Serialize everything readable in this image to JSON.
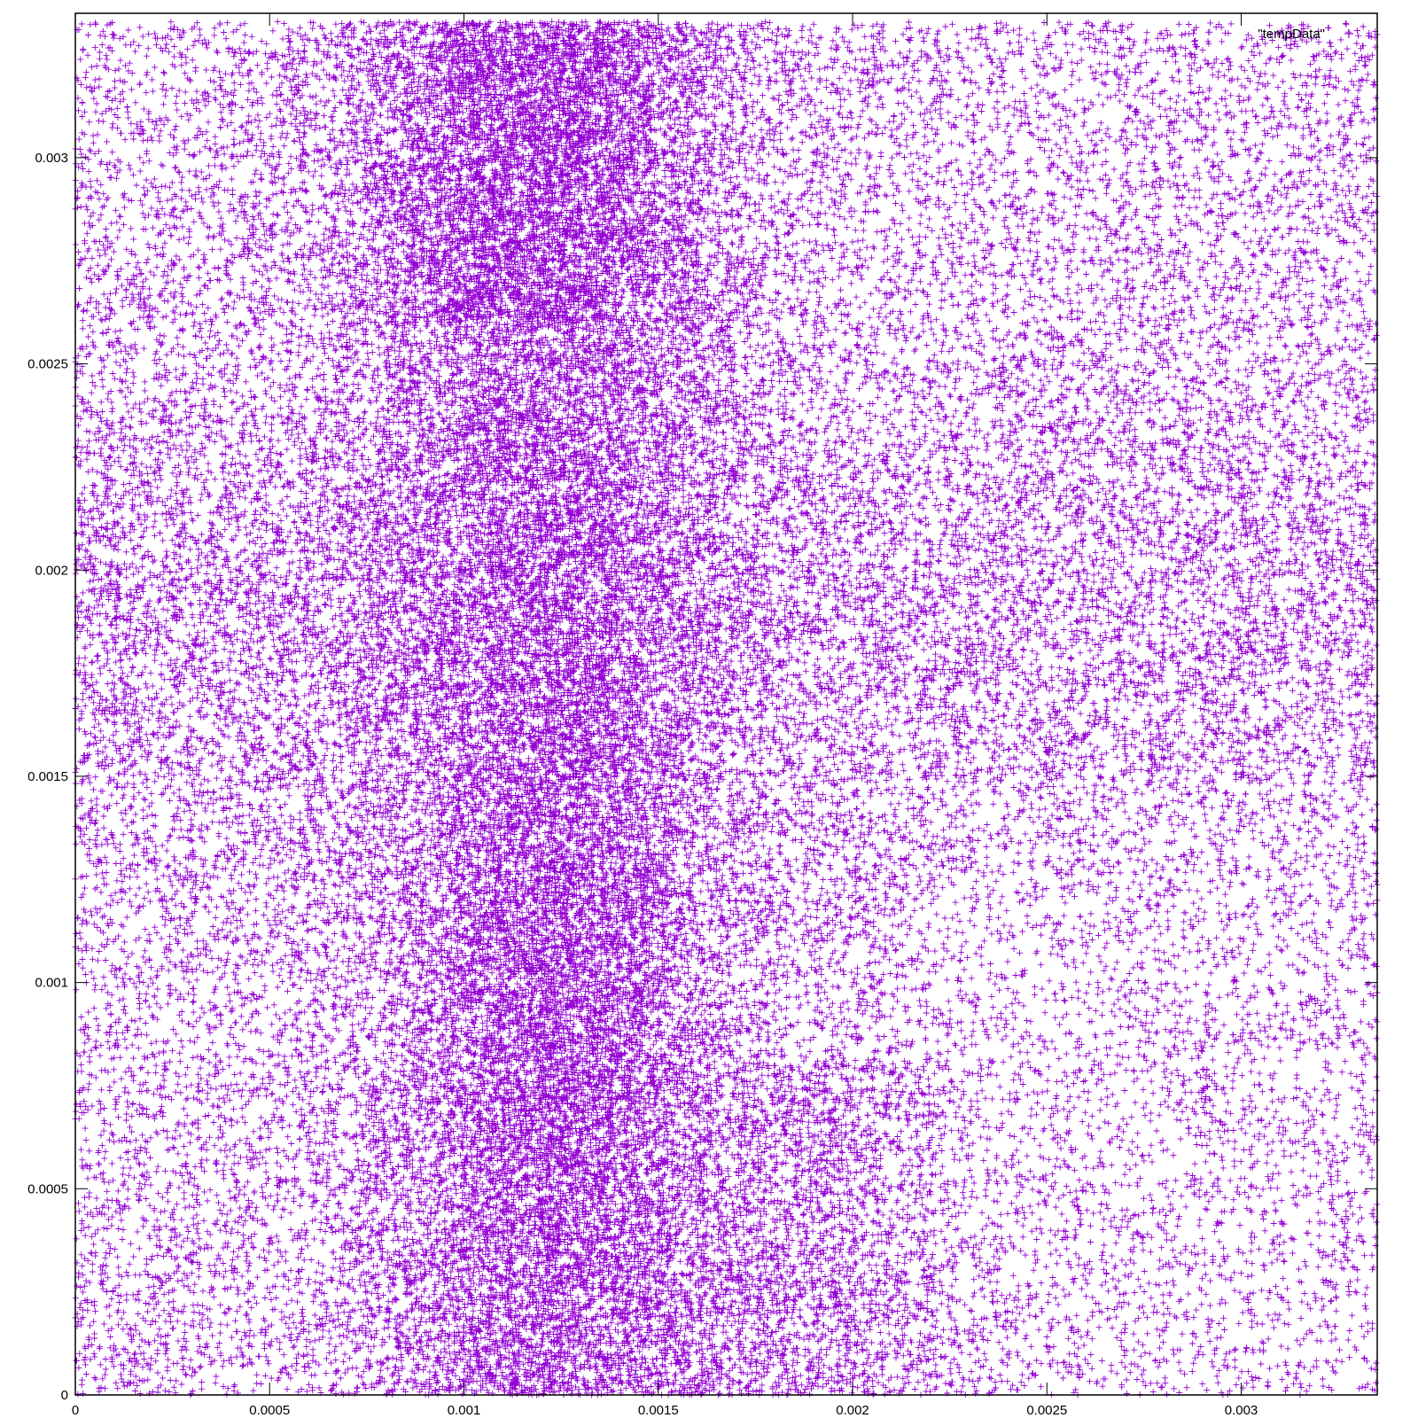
{
  "chart_data": {
    "type": "scatter",
    "title": "",
    "xlabel": "",
    "ylabel": "",
    "xlim": [
      0,
      0.00335
    ],
    "ylim": [
      0,
      0.00335
    ],
    "x_ticks": [
      0,
      0.0005,
      0.001,
      0.0015,
      0.002,
      0.0025,
      0.003
    ],
    "x_tick_labels": [
      "0",
      "0.0005",
      "0.001",
      "0.0015",
      "0.002",
      "0.0025",
      "0.003"
    ],
    "y_ticks": [
      0,
      0.0005,
      0.001,
      0.0015,
      0.002,
      0.0025,
      0.003
    ],
    "y_tick_labels": [
      "0",
      "0.0005",
      "0.001",
      "0.0015",
      "0.002",
      "0.0025",
      "0.003"
    ],
    "grid": false,
    "legend": {
      "position": "top-right",
      "entries": [
        "\"tempData\""
      ]
    },
    "series": [
      {
        "name": "\"tempData\"",
        "color": "#9400d3",
        "marker": "plus",
        "point_count": "approx. 100000 (dense uniform-like cloud over [0, 0.00335] x [0, 0.00335])",
        "density_regions": [
          {
            "description": "dense vertical band",
            "x_range": [
              0.0007,
              0.0018
            ],
            "y_range": [
              0,
              0.00333
            ],
            "relative_density": "high"
          },
          {
            "description": "densest core (upper)",
            "x_range": [
              0.0008,
              0.0016
            ],
            "y_range": [
              0.0026,
              0.00333
            ],
            "relative_density": "very high"
          },
          {
            "description": "densest core (lower)",
            "x_range": [
              0.0011,
              0.0016
            ],
            "y_range": [
              0.0006,
              0.001
            ],
            "relative_density": "very high"
          },
          {
            "description": "lower-right extension",
            "x_range": [
              0.0017,
              0.0022
            ],
            "y_range": [
              0,
              0.0008
            ],
            "relative_density": "medium"
          },
          {
            "description": "horizontal band left",
            "x_range": [
              0,
              0.0008
            ],
            "y_range": [
              0.0015,
              0.0023
            ],
            "relative_density": "medium"
          },
          {
            "description": "horizontal band right",
            "x_range": [
              0.0018,
              0.00335
            ],
            "y_range": [
              0.0016,
              0.0024
            ],
            "relative_density": "medium"
          },
          {
            "description": "background",
            "x_range": [
              0,
              0.00335
            ],
            "y_range": [
              0,
              0.00333
            ],
            "relative_density": "low"
          }
        ]
      }
    ]
  }
}
